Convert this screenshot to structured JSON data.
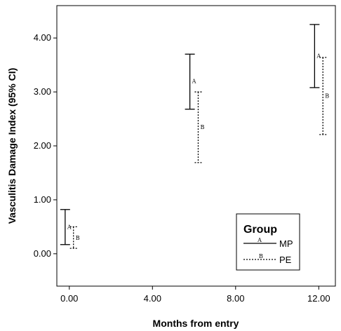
{
  "chart_data": {
    "type": "errorbar",
    "xlabel": "Months from entry",
    "ylabel": "Vasculitis Damage Index (95% CI)",
    "x_ticks": [
      "0.00",
      "4.00",
      "8.00",
      "12.00"
    ],
    "y_ticks": [
      "0.00",
      "1.00",
      "2.00",
      "3.00",
      "4.00"
    ],
    "xlim": [
      -0.6,
      12.8
    ],
    "ylim": [
      -0.6,
      4.6
    ],
    "grid": false,
    "legend": {
      "title": "Group",
      "position": "bottom-right",
      "entries": [
        {
          "marker": "A",
          "label": "MP",
          "style": "solid"
        },
        {
          "marker": "B",
          "label": "PE",
          "style": "dotted"
        }
      ]
    },
    "series": [
      {
        "name": "MP",
        "marker": "A",
        "style": "solid",
        "offset": -0.2,
        "points": [
          {
            "x": 0,
            "mean": 0.5,
            "lower": 0.17,
            "upper": 0.82
          },
          {
            "x": 6,
            "mean": 3.2,
            "lower": 2.68,
            "upper": 3.7
          },
          {
            "x": 12,
            "mean": 3.67,
            "lower": 3.08,
            "upper": 4.25
          }
        ]
      },
      {
        "name": "PE",
        "marker": "B",
        "style": "dotted",
        "offset": 0.2,
        "points": [
          {
            "x": 0,
            "mean": 0.3,
            "lower": 0.1,
            "upper": 0.5
          },
          {
            "x": 6,
            "mean": 2.35,
            "lower": 1.69,
            "upper": 3.0
          },
          {
            "x": 12,
            "mean": 2.93,
            "lower": 2.21,
            "upper": 3.64
          }
        ]
      }
    ]
  }
}
